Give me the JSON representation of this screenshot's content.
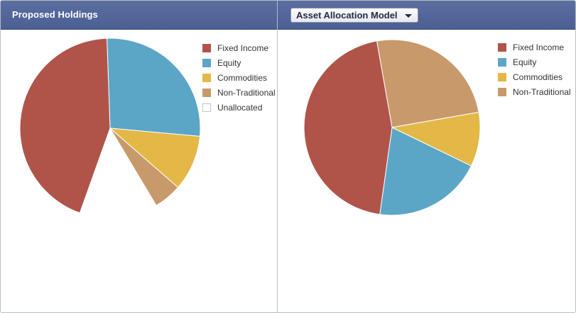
{
  "panels": {
    "left": {
      "title": "Proposed Holdings"
    },
    "right": {
      "dropdown_label": "Asset Allocation Model"
    }
  },
  "colors": {
    "fixed_income": "#b0544a",
    "equity": "#5ba6c6",
    "commodities": "#e3b846",
    "non_traditional": "#c89a6b",
    "unallocated": "#ffffff",
    "header": "#5266a0"
  },
  "chart_data": [
    {
      "type": "pie",
      "title": "",
      "legend_position": "right",
      "start_angle_deg": -2,
      "slices": [
        {
          "name": "Equity",
          "value": 27,
          "color": "#5ba6c6",
          "drawn": true
        },
        {
          "name": "Commodities",
          "value": 10,
          "color": "#e3b846",
          "drawn": true
        },
        {
          "name": "Non-Traditional",
          "value": 5,
          "color": "#c89a6b",
          "drawn": true
        },
        {
          "name": "Unallocated",
          "value": 14,
          "color": "#ffffff",
          "drawn": false
        },
        {
          "name": "Fixed Income",
          "value": 44,
          "color": "#b0544a",
          "drawn": true
        }
      ],
      "legend": [
        {
          "name": "Fixed Income",
          "color": "#b0544a"
        },
        {
          "name": "Equity",
          "color": "#5ba6c6"
        },
        {
          "name": "Commodities",
          "color": "#e3b846"
        },
        {
          "name": "Non-Traditional",
          "color": "#c89a6b"
        },
        {
          "name": "Unallocated",
          "color": "#ffffff"
        }
      ]
    },
    {
      "type": "pie",
      "title": "",
      "legend_position": "right",
      "start_angle_deg": -10,
      "slices": [
        {
          "name": "Non-Traditional",
          "value": 25,
          "color": "#c89a6b",
          "drawn": true
        },
        {
          "name": "Commodities",
          "value": 10,
          "color": "#e3b846",
          "drawn": true
        },
        {
          "name": "Equity",
          "value": 20,
          "color": "#5ba6c6",
          "drawn": true
        },
        {
          "name": "Fixed Income",
          "value": 45,
          "color": "#b0544a",
          "drawn": true
        }
      ],
      "legend": [
        {
          "name": "Fixed Income",
          "color": "#b0544a"
        },
        {
          "name": "Equity",
          "color": "#5ba6c6"
        },
        {
          "name": "Commodities",
          "color": "#e3b846"
        },
        {
          "name": "Non-Traditional",
          "color": "#c89a6b"
        }
      ]
    }
  ]
}
